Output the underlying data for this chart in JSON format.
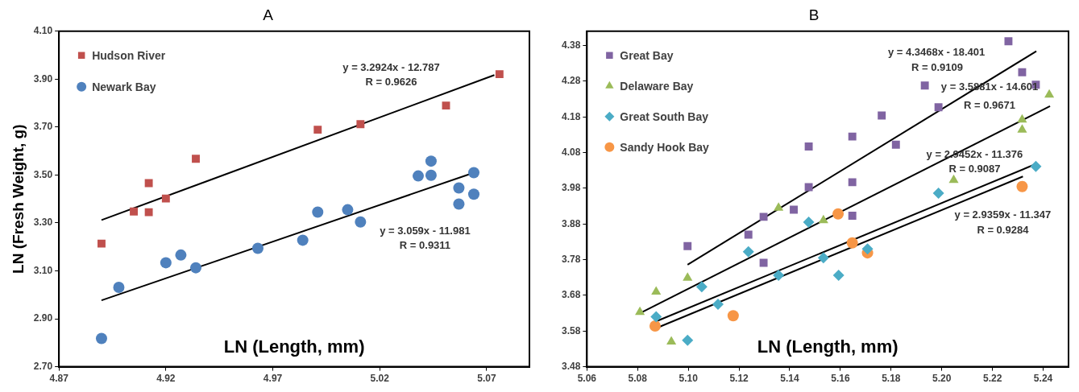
{
  "chart_data": [
    {
      "type": "scatter",
      "title": "A",
      "xlabel": "LN (Length, mm)",
      "ylabel": "LN (Fresh Weight, g)",
      "xlim": [
        4.87,
        5.09
      ],
      "ylim": [
        2.7,
        4.1
      ],
      "xticks": [
        4.87,
        4.92,
        4.97,
        5.02,
        5.07
      ],
      "yticks": [
        {
          "value": 2.7,
          "label": "2.70"
        },
        {
          "value": 2.9,
          "label": "2.90"
        },
        {
          "value": 3.1,
          "label": "3.10"
        },
        {
          "value": 3.3,
          "label": "3.30"
        },
        {
          "value": 3.5,
          "label": "3.50"
        },
        {
          "value": 3.7,
          "label": "3.70"
        },
        {
          "value": 3.9,
          "label": "3.90"
        },
        {
          "value": 4.1,
          "label": "4.10"
        }
      ],
      "grid": false,
      "legend": "top left",
      "series": [
        {
          "name": "Hudson River",
          "color": "#c0504d",
          "marker": "square",
          "x": [
            4.8899,
            4.905,
            4.912,
            4.92,
            4.912,
            4.934,
            4.991,
            5.011,
            5.051,
            5.076
          ],
          "values": [
            3.214,
            3.348,
            3.345,
            3.402,
            3.466,
            3.568,
            3.689,
            3.712,
            3.79,
            3.921
          ]
        },
        {
          "name": "Newark Bay",
          "color": "#4f81bd",
          "marker": "circle",
          "x": [
            4.8899,
            4.898,
            4.92,
            4.927,
            4.934,
            4.963,
            4.984,
            4.991,
            5.005,
            5.011,
            5.038,
            5.044,
            5.044,
            5.057,
            5.057,
            5.064,
            5.064
          ],
          "values": [
            2.818,
            3.031,
            3.134,
            3.166,
            3.113,
            3.194,
            3.228,
            3.345,
            3.355,
            3.304,
            3.496,
            3.499,
            3.558,
            3.446,
            3.379,
            3.51,
            3.42
          ]
        },
        {
          "type": "line",
          "color": "#000000",
          "marker": "none",
          "x": [
            4.8899,
            5.0736
          ],
          "values": [
            3.312,
            3.917
          ]
        },
        {
          "type": "line",
          "color": "#000000",
          "marker": "none",
          "x": [
            4.8899,
            5.0638
          ],
          "values": [
            2.977,
            3.509
          ]
        }
      ],
      "annotations": [
        "y = 3.2924x - 12.787",
        "R = 0.9626",
        "y = 3.059x - 11.981",
        "R = 0.9311"
      ]
    },
    {
      "type": "scatter",
      "title": "B",
      "xlabel": "LN (Length, mm)",
      "xlim": [
        5.06,
        5.25
      ],
      "ylim": [
        3.48,
        4.42
      ],
      "xticks": [
        5.06,
        5.08,
        {
          "value": 5.1,
          "label": "5.10"
        },
        5.12,
        5.14,
        5.16,
        5.18,
        {
          "value": 5.2,
          "label": "5.20"
        },
        5.22,
        5.24
      ],
      "yticks": [
        3.48,
        3.58,
        3.68,
        3.78,
        3.88,
        3.98,
        4.08,
        4.18,
        4.28,
        4.38
      ],
      "grid": false,
      "legend": "top left",
      "series": [
        {
          "name": "Great Bay",
          "color": "#8064a2",
          "marker": "square",
          "x": [
            5.0997,
            5.1237,
            5.1297,
            5.1297,
            5.1416,
            5.1647,
            5.1475,
            5.1647,
            5.1475,
            5.1647,
            5.1763,
            5.1819,
            5.1933,
            5.1987,
            5.2263,
            5.2317,
            5.2371
          ],
          "values": [
            3.818,
            3.85,
            3.9,
            3.771,
            3.92,
            3.903,
            3.983,
            3.997,
            4.097,
            4.125,
            4.184,
            4.102,
            4.268,
            4.207,
            4.392,
            4.305,
            4.27
          ]
        },
        {
          "name": "Delaware Bay",
          "color": "#9bbb59",
          "marker": "triangle",
          "x": [
            5.0809,
            5.0873,
            5.0933,
            5.0997,
            5.1356,
            5.1533,
            5.2047,
            5.2317,
            5.2317,
            5.2424
          ],
          "values": [
            3.633,
            3.69,
            3.55,
            3.729,
            3.925,
            3.89,
            4.003,
            4.172,
            4.144,
            4.242
          ]
        },
        {
          "name": "Great South Bay",
          "color": "#4bacc6",
          "marker": "diamond",
          "x": [
            5.0873,
            5.0997,
            5.1053,
            5.1117,
            5.1237,
            5.1356,
            5.1475,
            5.1533,
            5.1593,
            5.1707,
            5.1987,
            5.2371
          ],
          "values": [
            3.62,
            3.554,
            3.704,
            3.655,
            3.802,
            3.736,
            3.885,
            3.785,
            3.736,
            3.81,
            3.966,
            4.041
          ]
        },
        {
          "name": "Sandy Hook Bay",
          "color": "#f79646",
          "marker": "circle",
          "x": [
            5.0869,
            5.1177,
            5.1591,
            5.1647,
            5.1707,
            5.2317
          ],
          "values": [
            3.594,
            3.623,
            3.908,
            3.827,
            3.799,
            3.985
          ]
        },
        {
          "type": "line",
          "color": "#000000",
          "marker": "none",
          "x": [
            5.0997,
            5.2373
          ],
          "values": [
            3.766,
            4.364
          ]
        },
        {
          "type": "line",
          "color": "#000000",
          "marker": "none",
          "x": [
            5.0809,
            5.2427
          ],
          "values": [
            3.63,
            4.21
          ]
        },
        {
          "type": "line",
          "color": "#000000",
          "marker": "none",
          "x": [
            5.0873,
            5.2371
          ],
          "values": [
            3.607,
            4.048
          ]
        },
        {
          "type": "line",
          "color": "#000000",
          "marker": "none",
          "x": [
            5.0873,
            5.232
          ],
          "values": [
            3.588,
            4.013
          ]
        }
      ],
      "annotations": [
        "y = 4.3468x - 18.401",
        "R = 0.9109",
        "y = 3.5881x - 14.601",
        "R = 0.9671",
        "y = 2.9452x - 11.376",
        "R = 0.9087",
        "y = 2.9359x - 11.347",
        "R = 0.9284"
      ]
    }
  ]
}
